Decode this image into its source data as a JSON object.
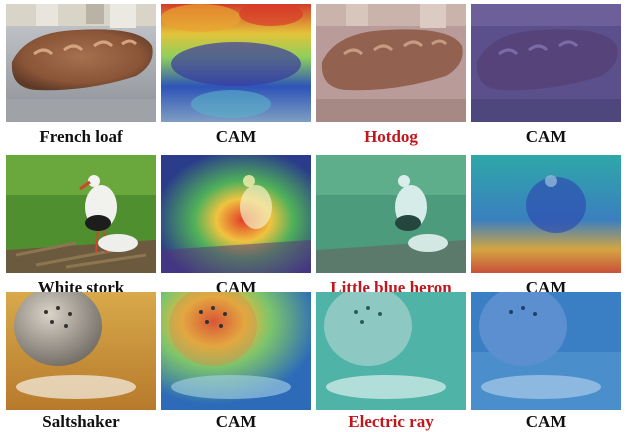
{
  "figure": {
    "rows": [
      {
        "name": "row-french-loaf",
        "captions": [
          {
            "text": "French loaf",
            "color": "#111111"
          },
          {
            "text": "CAM",
            "color": "#111111"
          },
          {
            "text": "Hotdog",
            "color": "#c0161c"
          },
          {
            "text": "CAM",
            "color": "#111111"
          }
        ]
      },
      {
        "name": "row-white-stork",
        "captions": [
          {
            "text": "White stork",
            "color": "#111111"
          },
          {
            "text": "CAM",
            "color": "#111111"
          },
          {
            "text": "Little blue heron",
            "color": "#c0161c"
          },
          {
            "text": "CAM",
            "color": "#111111"
          }
        ]
      },
      {
        "name": "row-saltshaker",
        "captions": [
          {
            "text": "Saltshaker",
            "color": "#111111"
          },
          {
            "text": "CAM",
            "color": "#111111"
          },
          {
            "text": "Electric ray",
            "color": "#c0161c"
          },
          {
            "text": "CAM",
            "color": "#111111"
          }
        ]
      }
    ]
  }
}
